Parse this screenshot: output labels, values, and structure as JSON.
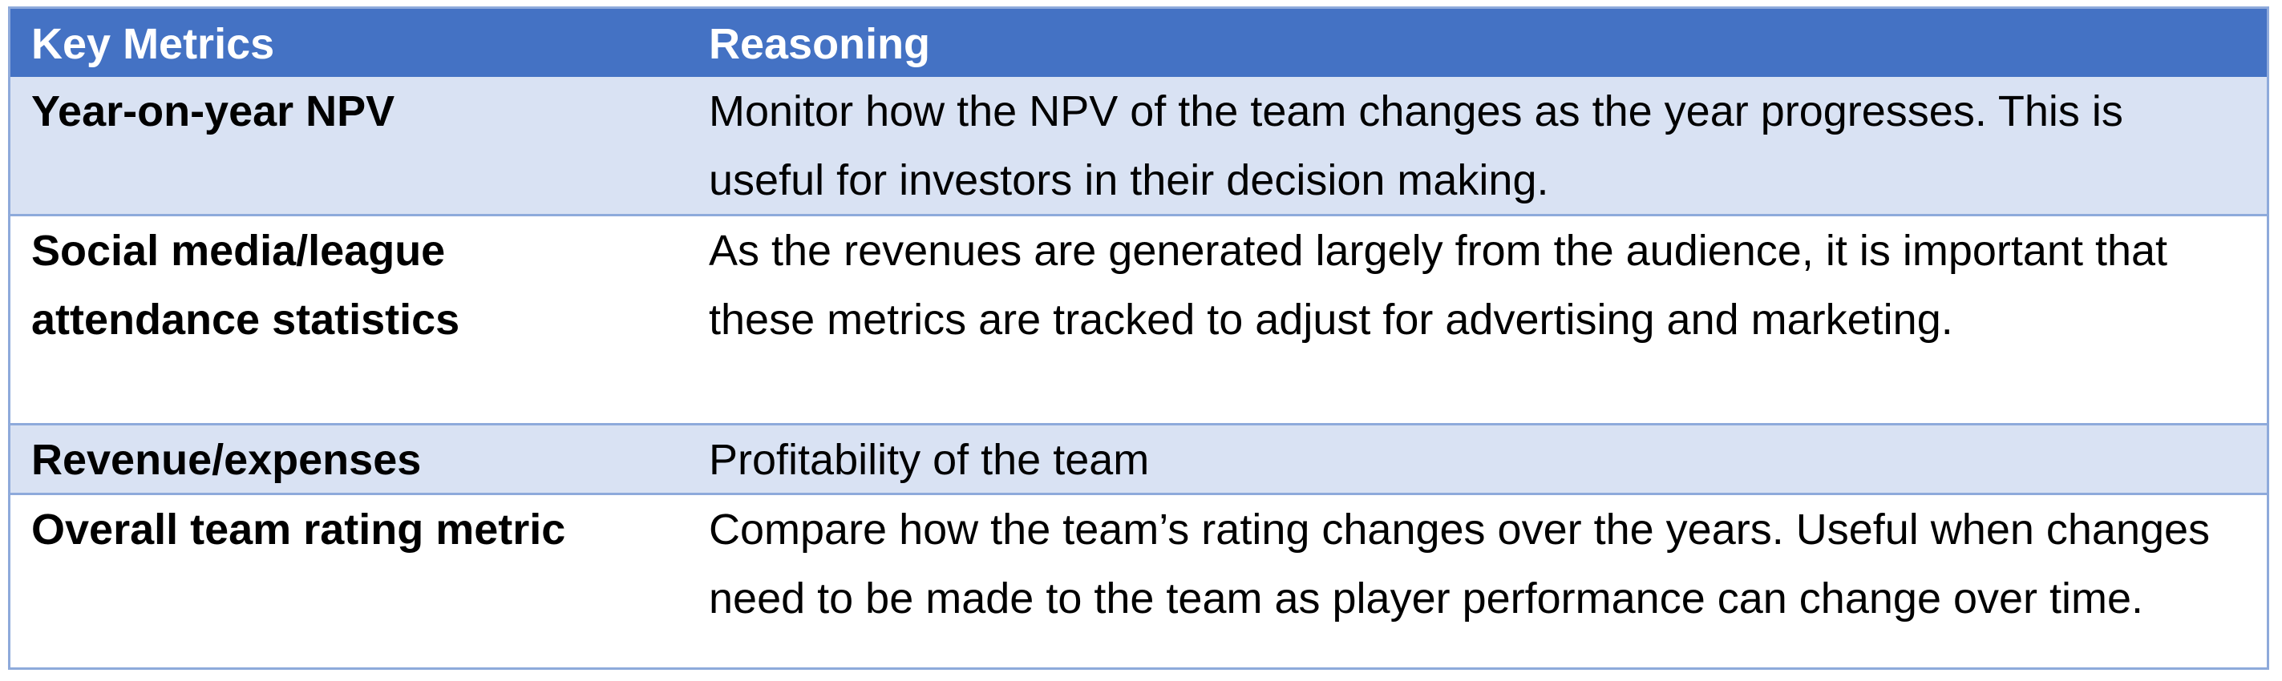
{
  "table": {
    "headers": {
      "metric": "Key Metrics",
      "reasoning": "Reasoning"
    },
    "rows": [
      {
        "metric": "Year-on-year NPV",
        "reasoning": "Monitor how the NPV of the team changes as the year progresses. This is useful for investors in their decision making."
      },
      {
        "metric": "Social media/league attendance statistics",
        "reasoning": "As the revenues are generated largely from the audience, it is important that these metrics are tracked to adjust for advertising and marketing."
      },
      {
        "metric": "Revenue/expenses",
        "reasoning": "Profitability of the team"
      },
      {
        "metric": "Overall team rating metric",
        "reasoning": "Compare how the team’s rating changes over the years. Useful when changes need to be made to the team as player performance can change over time."
      }
    ],
    "colors": {
      "header_bg": "#4472c4",
      "band_bg": "#d9e2f3",
      "border": "#8eaadb"
    }
  }
}
